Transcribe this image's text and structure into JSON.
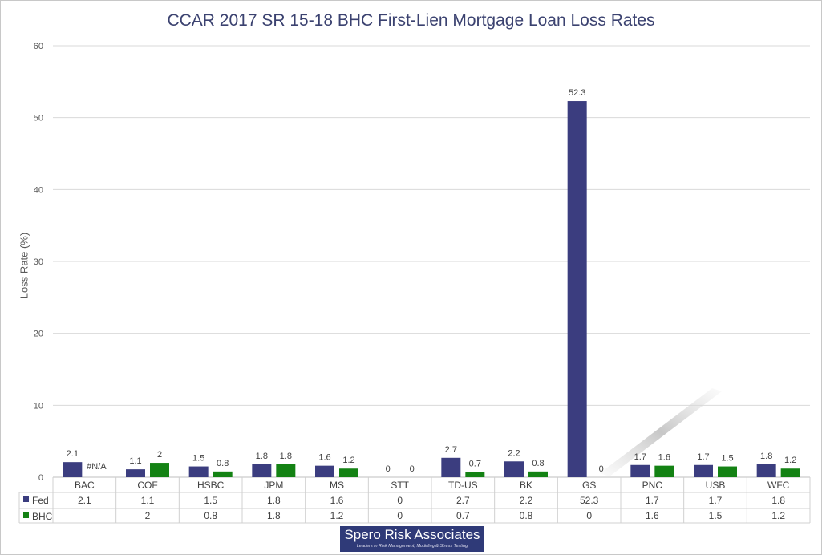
{
  "chart_data": {
    "type": "bar",
    "title": "CCAR 2017 SR 15-18 BHC First-Lien Mortgage Loan Loss Rates",
    "xlabel": "",
    "ylabel": "Loss Rate (%)",
    "ylim": [
      0,
      60
    ],
    "yticks": [
      0,
      10,
      20,
      30,
      40,
      50,
      60
    ],
    "grid": true,
    "legend": "data-table",
    "categories": [
      "BAC",
      "COF",
      "HSBC",
      "JPM",
      "MS",
      "STT",
      "TD-US",
      "BK",
      "GS",
      "PNC",
      "USB",
      "WFC"
    ],
    "series": [
      {
        "name": "Fed",
        "color": "#3b3d7f",
        "values": [
          2.1,
          1.1,
          1.5,
          1.8,
          1.6,
          0,
          2.7,
          2.2,
          52.3,
          1.7,
          1.7,
          1.8
        ],
        "labels": [
          "2.1",
          "1.1",
          "1.5",
          "1.8",
          "1.6",
          "0",
          "2.7",
          "2.2",
          "52.3",
          "1.7",
          "1.7",
          "1.8"
        ],
        "table_labels": [
          "2.1",
          "1.1",
          "1.5",
          "1.8",
          "1.6",
          "0",
          "2.7",
          "2.2",
          "52.3",
          "1.7",
          "1.7",
          "1.8"
        ]
      },
      {
        "name": "BHC",
        "color": "#148214",
        "values": [
          null,
          2,
          0.8,
          1.8,
          1.2,
          0,
          0.7,
          0.8,
          0,
          1.6,
          1.5,
          1.2
        ],
        "labels": [
          "#N/A",
          "2",
          "0.8",
          "1.8",
          "1.2",
          "0",
          "0.7",
          "0.8",
          "0",
          "1.6",
          "1.5",
          "1.2"
        ],
        "table_labels": [
          "",
          "2",
          "0.8",
          "1.8",
          "1.2",
          "0",
          "0.7",
          "0.8",
          "0",
          "1.6",
          "1.5",
          "1.2"
        ]
      }
    ]
  },
  "logo": {
    "name": "Spero Risk Associates",
    "tagline": "Leaders in Risk Management, Modeling & Stress Testing"
  }
}
